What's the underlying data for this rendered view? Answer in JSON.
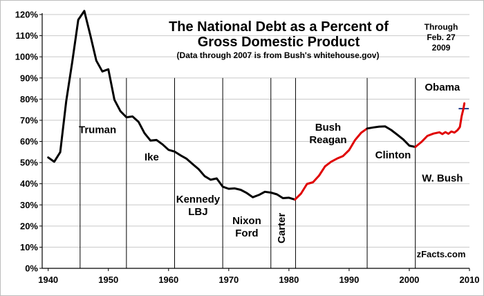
{
  "chart_data": {
    "type": "line",
    "title_line1": "The National Debt as a Percent of",
    "title_line2": "Gross Domestic Product",
    "subtitle": "(Data through 2007 is from Bush's whitehouse.gov)",
    "date_note": [
      "Through",
      "Feb. 27",
      "2009"
    ],
    "source_label": "zFacts.com",
    "xlim": [
      1939,
      2010
    ],
    "ylim": [
      0,
      120
    ],
    "x_ticks": [
      1940,
      1950,
      1960,
      1970,
      1980,
      1990,
      2000,
      2010
    ],
    "y_ticks": [
      "0%",
      "10%",
      "20%",
      "30%",
      "40%",
      "50%",
      "60%",
      "70%",
      "80%",
      "90%",
      "100%",
      "110%",
      "120%"
    ],
    "grid": "horizontal",
    "colors": {
      "line_main": "#000000",
      "line_highlight": "#e00000",
      "reference_line": "#1f3a8a"
    },
    "term_boundaries": [
      1945.3,
      1953,
      1961,
      1969,
      1977,
      1981.1,
      1993,
      2001
    ],
    "presidents": [
      {
        "lines": [
          "Truman"
        ]
      },
      {
        "lines": [
          "Ike"
        ]
      },
      {
        "lines": [
          "Kennedy",
          "LBJ"
        ]
      },
      {
        "lines": [
          "Nixon",
          "Ford"
        ]
      },
      {
        "lines": [
          "Carter"
        ]
      },
      {
        "lines": [
          "Bush",
          "Reagan"
        ]
      },
      {
        "lines": [
          "Clinton"
        ]
      },
      {
        "lines": [
          "W. Bush"
        ]
      },
      {
        "lines": [
          "Obama"
        ]
      }
    ],
    "reference_line": {
      "y": 75.5,
      "x_start": 2008.2,
      "x_end": 2009.9
    },
    "series": [
      {
        "color": "#000000",
        "points": [
          [
            1940,
            52.4
          ],
          [
            1941,
            50.4
          ],
          [
            1942,
            54.9
          ],
          [
            1943,
            79.1
          ],
          [
            1944,
            97.6
          ],
          [
            1945,
            117.5
          ],
          [
            1946,
            121.7
          ],
          [
            1947,
            110.3
          ],
          [
            1948,
            98.2
          ],
          [
            1949,
            93.1
          ],
          [
            1950,
            94.1
          ],
          [
            1951,
            79.7
          ],
          [
            1952,
            74.3
          ],
          [
            1953,
            71.4
          ],
          [
            1954,
            71.8
          ],
          [
            1955,
            69.3
          ],
          [
            1956,
            63.9
          ],
          [
            1957,
            60.4
          ],
          [
            1958,
            60.7
          ],
          [
            1959,
            58.6
          ],
          [
            1960,
            56.0
          ],
          [
            1961,
            55.2
          ],
          [
            1962,
            53.4
          ],
          [
            1963,
            51.8
          ],
          [
            1964,
            49.3
          ],
          [
            1965,
            46.9
          ],
          [
            1966,
            43.6
          ],
          [
            1967,
            41.9
          ],
          [
            1968,
            42.5
          ],
          [
            1969,
            38.6
          ],
          [
            1970,
            37.6
          ],
          [
            1971,
            37.8
          ],
          [
            1972,
            37.1
          ],
          [
            1973,
            35.6
          ],
          [
            1974,
            33.6
          ],
          [
            1975,
            34.7
          ],
          [
            1976,
            36.2
          ],
          [
            1977,
            35.8
          ],
          [
            1978,
            35.0
          ],
          [
            1979,
            33.2
          ],
          [
            1980,
            33.4
          ],
          [
            1981,
            32.5
          ]
        ]
      },
      {
        "color": "#e00000",
        "points": [
          [
            1981,
            32.5
          ],
          [
            1982,
            35.3
          ],
          [
            1983,
            39.9
          ],
          [
            1984,
            40.7
          ],
          [
            1985,
            43.8
          ],
          [
            1986,
            48.2
          ],
          [
            1987,
            50.4
          ],
          [
            1988,
            51.9
          ],
          [
            1989,
            53.1
          ],
          [
            1990,
            55.9
          ],
          [
            1991,
            60.7
          ],
          [
            1992,
            64.1
          ],
          [
            1993,
            66.1
          ]
        ]
      },
      {
        "color": "#000000",
        "points": [
          [
            1993,
            66.1
          ],
          [
            1994,
            66.6
          ],
          [
            1995,
            67.0
          ],
          [
            1996,
            67.1
          ],
          [
            1997,
            65.4
          ],
          [
            1998,
            63.2
          ],
          [
            1999,
            60.9
          ],
          [
            2000,
            58.0
          ],
          [
            2001,
            57.4
          ]
        ]
      },
      {
        "color": "#e00000",
        "points": [
          [
            2001,
            57.4
          ],
          [
            2002,
            59.7
          ],
          [
            2003,
            62.6
          ],
          [
            2004,
            63.7
          ],
          [
            2005,
            64.3
          ],
          [
            2005.5,
            63.5
          ],
          [
            2006,
            64.4
          ],
          [
            2006.5,
            63.6
          ],
          [
            2007,
            64.7
          ],
          [
            2007.5,
            64.2
          ],
          [
            2008,
            65.3
          ],
          [
            2008.4,
            66.8
          ],
          [
            2008.7,
            72.0
          ],
          [
            2009,
            75.5
          ],
          [
            2009.15,
            78.0
          ]
        ]
      }
    ]
  }
}
